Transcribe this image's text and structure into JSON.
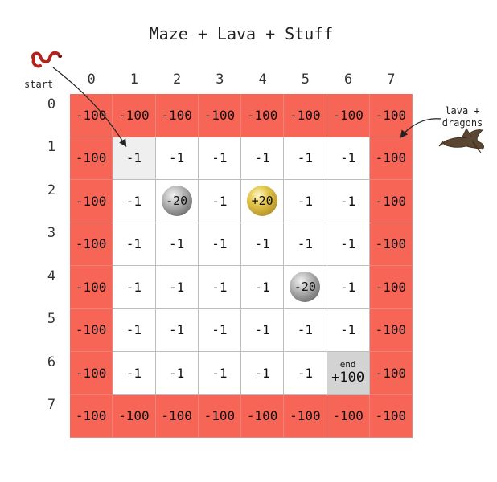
{
  "title": "Maze + Lava + Stuff",
  "columns": [
    "0",
    "1",
    "2",
    "3",
    "4",
    "5",
    "6",
    "7"
  ],
  "rows": [
    "0",
    "1",
    "2",
    "3",
    "4",
    "5",
    "6",
    "7"
  ],
  "grid": [
    [
      "-100",
      "-100",
      "-100",
      "-100",
      "-100",
      "-100",
      "-100",
      "-100"
    ],
    [
      "-100",
      "-1",
      "-1",
      "-1",
      "-1",
      "-1",
      "-1",
      "-100"
    ],
    [
      "-100",
      "-1",
      "-20",
      "-1",
      "+20",
      "-1",
      "-1",
      "-100"
    ],
    [
      "-100",
      "-1",
      "-1",
      "-1",
      "-1",
      "-1",
      "-1",
      "-100"
    ],
    [
      "-100",
      "-1",
      "-1",
      "-1",
      "-1",
      "-20",
      "-1",
      "-100"
    ],
    [
      "-100",
      "-1",
      "-1",
      "-1",
      "-1",
      "-1",
      "-1",
      "-100"
    ],
    [
      "-100",
      "-1",
      "-1",
      "-1",
      "-1",
      "-1",
      "+100",
      "-100"
    ],
    [
      "-100",
      "-100",
      "-100",
      "-100",
      "-100",
      "-100",
      "-100",
      "-100"
    ]
  ],
  "special_cells": {
    "start": [
      1,
      1
    ],
    "end": [
      6,
      6
    ],
    "end_label": "end",
    "grey_balls": [
      [
        2,
        2
      ],
      [
        4,
        5
      ]
    ],
    "gold_balls": [
      [
        2,
        4
      ]
    ]
  },
  "annotations": {
    "start_label": "start",
    "lava_label": "lava +\ndragons"
  },
  "icons": {
    "start_icon": "snake-icon",
    "lava_icon": "dragon-icon"
  },
  "colors": {
    "lava": "#f76557",
    "start_cell": "#efefef",
    "end_cell": "#d3d3d3",
    "grey_ball": "#8a8a8a",
    "gold_ball": "#c9a93a"
  }
}
